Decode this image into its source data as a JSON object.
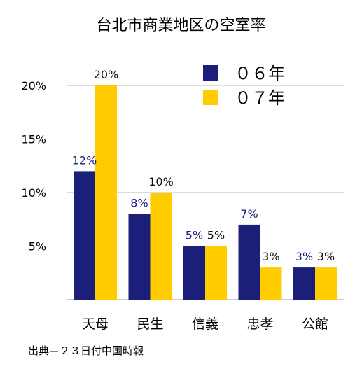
{
  "title": "台北市商業地区の空室率",
  "source": "出典＝２３日付中国時報",
  "chart_data": {
    "type": "bar",
    "categories": [
      "天母",
      "民生",
      "信義",
      "忠孝",
      "公館"
    ],
    "series": [
      {
        "name": "０６年",
        "values": [
          12,
          8,
          5,
          7,
          3
        ],
        "color": "#1c1f7a",
        "labels": [
          "12%",
          "8%",
          "5%",
          "7%",
          "3%"
        ],
        "label_color": "#1c1f7a"
      },
      {
        "name": "０７年",
        "values": [
          20,
          10,
          5,
          3,
          3
        ],
        "color": "#ffcc00",
        "labels": [
          "20%",
          "10%",
          "5%",
          "3%",
          "3%"
        ],
        "label_color": "#111111"
      }
    ],
    "y_ticks": [
      "5%",
      "10%",
      "15%",
      "20%"
    ],
    "y_tick_values": [
      5,
      10,
      15,
      20
    ],
    "ylim": [
      0,
      20
    ],
    "grid": true,
    "legend_position": "top-right",
    "xlabel": "",
    "ylabel": ""
  }
}
